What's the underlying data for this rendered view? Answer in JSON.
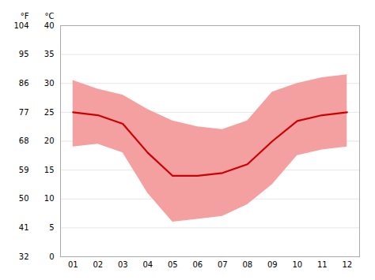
{
  "chart_data": {
    "type": "line",
    "x": [
      1,
      2,
      3,
      4,
      5,
      6,
      7,
      8,
      9,
      10,
      11,
      12
    ],
    "xlim": [
      0.5,
      12.5
    ],
    "xticks": [
      {
        "value": 1,
        "label": "01"
      },
      {
        "value": 2,
        "label": "02"
      },
      {
        "value": 3,
        "label": "03"
      },
      {
        "value": 4,
        "label": "04"
      },
      {
        "value": 5,
        "label": "05"
      },
      {
        "value": 6,
        "label": "06"
      },
      {
        "value": 7,
        "label": "07"
      },
      {
        "value": 8,
        "label": "08"
      },
      {
        "value": 9,
        "label": "09"
      },
      {
        "value": 10,
        "label": "10"
      },
      {
        "value": 11,
        "label": "11"
      },
      {
        "value": 12,
        "label": "12"
      }
    ],
    "series": [
      {
        "type": "area",
        "color": "#f4a0a0",
        "lower": [
          19.0,
          19.5,
          18.0,
          11.0,
          6.0,
          6.5,
          7.0,
          9.0,
          12.5,
          17.5,
          18.5,
          19.0
        ],
        "upper": [
          30.5,
          29.0,
          28.0,
          25.5,
          23.5,
          22.5,
          22.0,
          23.5,
          28.5,
          30.0,
          31.0,
          31.5
        ]
      },
      {
        "type": "line",
        "color": "#cc0000",
        "values": [
          25.0,
          24.5,
          23.0,
          18.0,
          14.0,
          14.0,
          14.5,
          16.0,
          20.0,
          23.5,
          24.5,
          25.0
        ]
      }
    ],
    "ylim": [
      0,
      40
    ],
    "yticks": [
      0,
      5,
      10,
      15,
      20,
      25,
      30,
      35,
      40
    ],
    "ylabel": "°C",
    "y2lim": [
      32,
      104
    ],
    "y2ticks": [
      32,
      41,
      50,
      59,
      68,
      77,
      86,
      95,
      104
    ],
    "y2label": "°F",
    "grid": true
  }
}
